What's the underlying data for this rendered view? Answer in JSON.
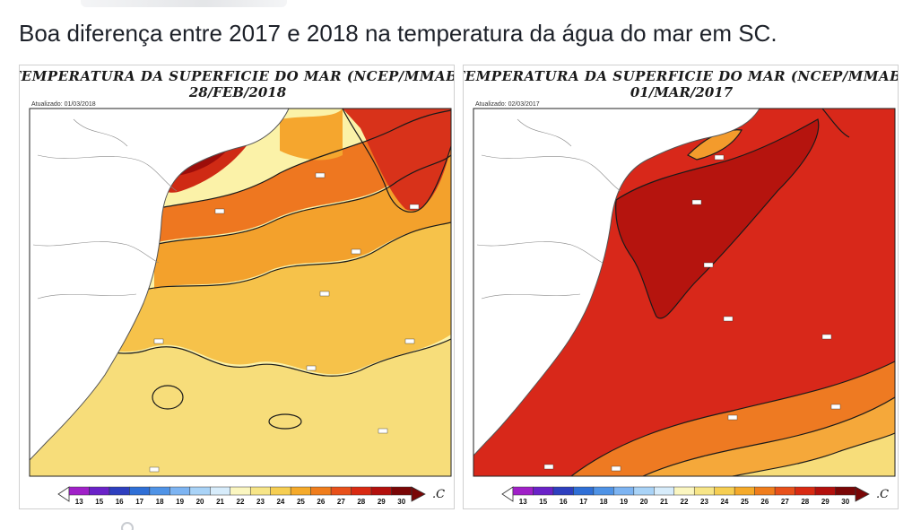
{
  "post": {
    "caption": "Boa diferença entre 2017 e 2018 na temperatura da água do mar em SC."
  },
  "maps": [
    {
      "title": "TEMPERATURA DA SUPERFICIE DO MAR (NCEP/MMAB)",
      "date": "28/FEB/2018",
      "updated": "Atualizado: 01/03/2018"
    },
    {
      "title": "TEMPERATURA DA SUPERFICIE DO MAR (NCEP/MMAB)",
      "date": "01/MAR/2017",
      "updated": "Atualizado: 02/03/2017"
    }
  ],
  "colorbar": {
    "values": [
      "13",
      "15",
      "16",
      "17",
      "18",
      "19",
      "20",
      "21",
      "22",
      "23",
      "24",
      "25",
      "26",
      "27",
      "28",
      "29",
      "30"
    ],
    "colors": [
      "#a020c8",
      "#6a22c8",
      "#2e3fbf",
      "#2f6fd6",
      "#4f93e6",
      "#7db4f2",
      "#a9d3f7",
      "#d7ecfb",
      "#fbf6c0",
      "#f7e587",
      "#f6ce52",
      "#f5aa2a",
      "#f07d1c",
      "#e8501a",
      "#d92a12",
      "#b3100d",
      "#7a0606"
    ],
    "unit": ".C"
  },
  "colors": {
    "land": "#ffffff",
    "coast": "#555555",
    "contour": "#1a1a1a"
  }
}
